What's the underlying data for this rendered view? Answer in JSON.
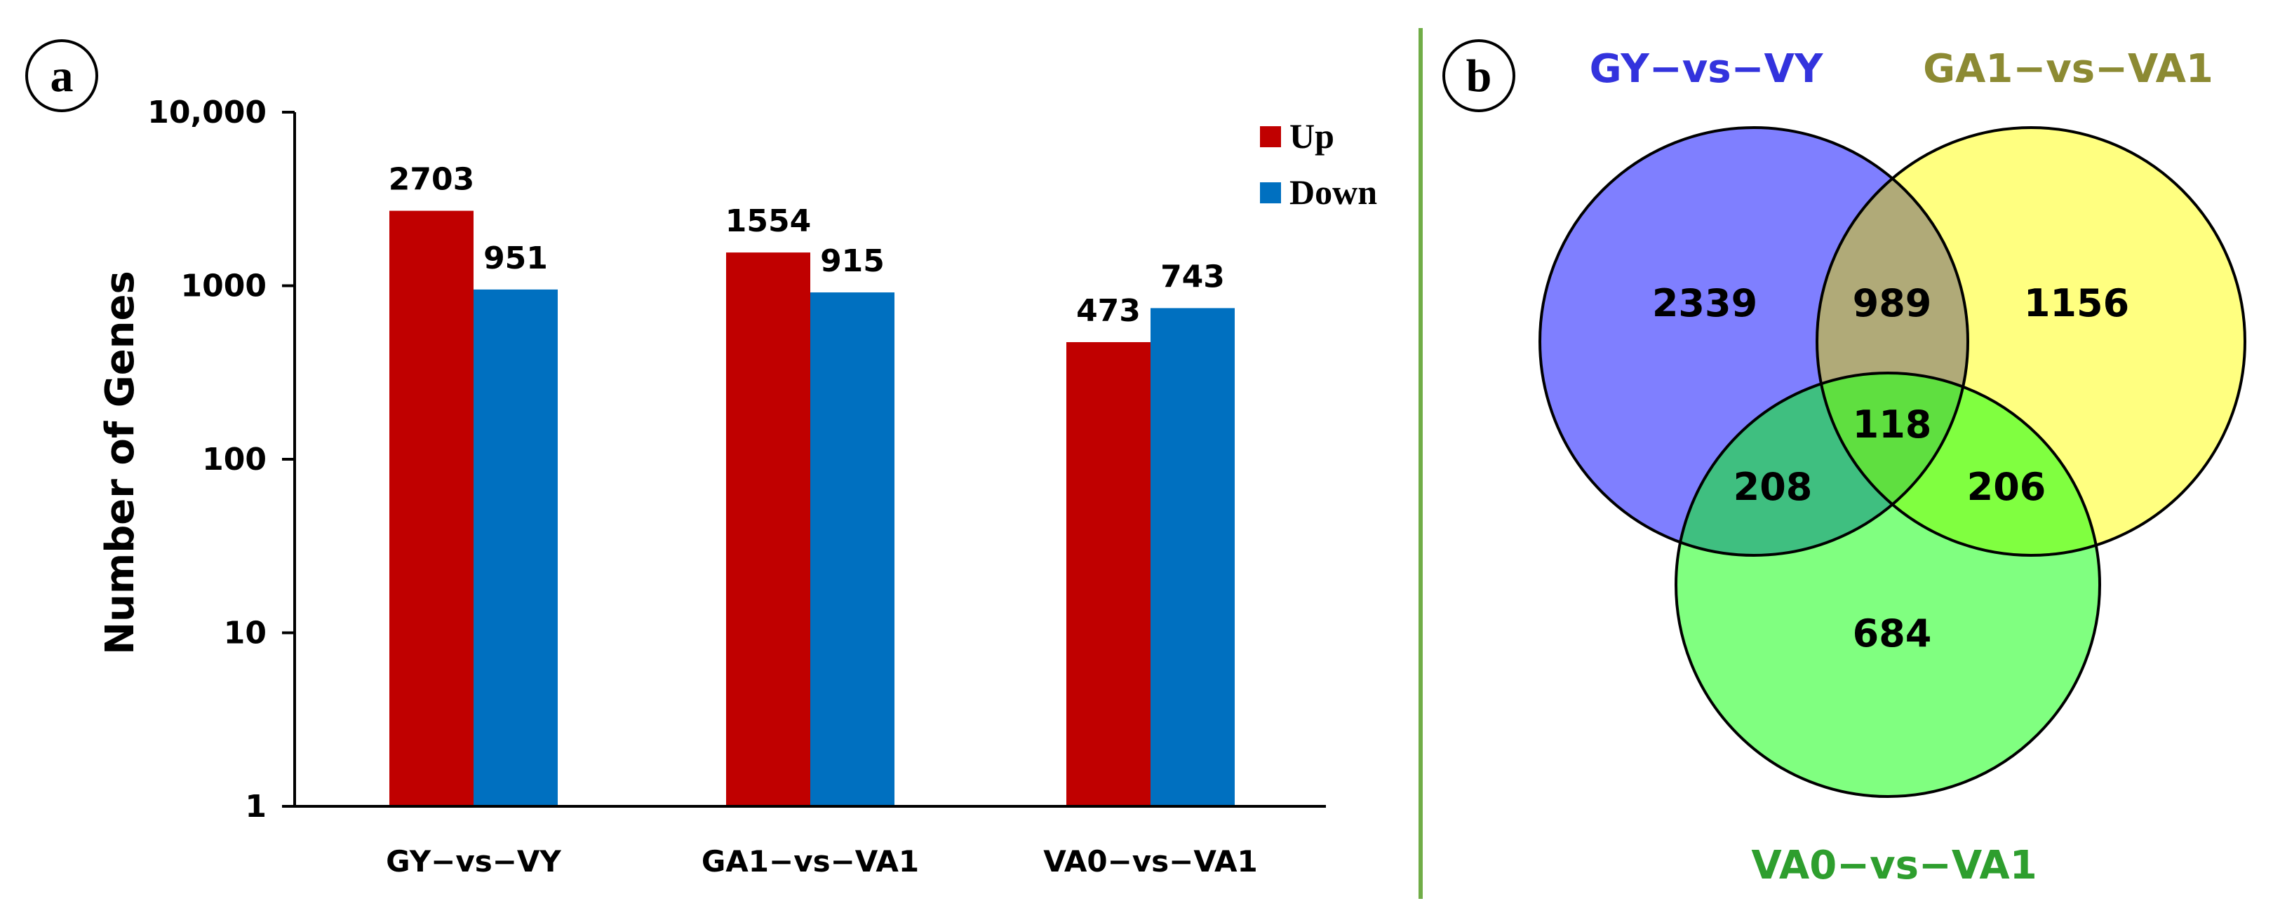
{
  "chart_data": [
    {
      "panel": "a",
      "type": "bar",
      "scale": "log",
      "categories": [
        "GY−vs−VY",
        "GA1−vs−VA1",
        "VA0−vs−VA1"
      ],
      "series": [
        {
          "name": "Up",
          "color": "#c00000",
          "values": [
            2703,
            1554,
            473
          ]
        },
        {
          "name": "Down",
          "color": "#0070c0",
          "values": [
            951,
            915,
            743
          ]
        }
      ],
      "data_labels": [
        [
          "2703",
          "1554",
          "473"
        ],
        [
          "951",
          "915",
          "743"
        ]
      ],
      "ylabel": "Number of Genes",
      "xlabel": "",
      "ylim": [
        1,
        10000
      ],
      "yticks": [
        1,
        10,
        100,
        1000,
        10000
      ],
      "ytick_labels": [
        "1",
        "10",
        "100",
        "1000",
        "10,000"
      ],
      "legend_position": "top-right",
      "grid": false
    },
    {
      "panel": "b",
      "type": "venn",
      "sets": [
        {
          "name": "GY−vs−VY",
          "fill": "#7f7fff",
          "label_color": "#3333dd"
        },
        {
          "name": "GA1−vs−VA1",
          "fill": "#ffff80",
          "label_color": "#8c8a33"
        },
        {
          "name": "VA0−vs−VA1",
          "fill": "#80ff80",
          "label_color": "#2e9e2e"
        }
      ],
      "regions": [
        {
          "sets": [
            "GY−vs−VY"
          ],
          "value": "2339"
        },
        {
          "sets": [
            "GA1−vs−VA1"
          ],
          "value": "1156"
        },
        {
          "sets": [
            "VA0−vs−VA1"
          ],
          "value": "684"
        },
        {
          "sets": [
            "GY−vs−VY",
            "GA1−vs−VA1"
          ],
          "value": "989"
        },
        {
          "sets": [
            "GY−vs−VY",
            "VA0−vs−VA1"
          ],
          "value": "208"
        },
        {
          "sets": [
            "GA1−vs−VA1",
            "VA0−vs−VA1"
          ],
          "value": "206"
        },
        {
          "sets": [
            "GY−vs−VY",
            "GA1−vs−VA1",
            "VA0−vs−VA1"
          ],
          "value": "118"
        }
      ]
    }
  ],
  "panel_labels": {
    "a": "a",
    "b": "b"
  },
  "colors": {
    "divider": "#70ad47",
    "axis": "#000000"
  }
}
